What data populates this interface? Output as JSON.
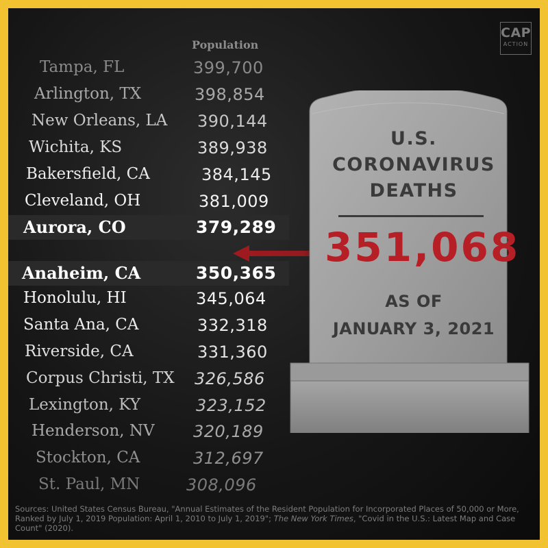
{
  "logo": {
    "line1": "CAP",
    "line2": "ACTION"
  },
  "table": {
    "population_header": "Population",
    "rows": [
      {
        "city": "Tampa, FL",
        "population": "399,700"
      },
      {
        "city": "Arlington, TX",
        "population": "398,854"
      },
      {
        "city": "New Orleans, LA",
        "population": "390,144"
      },
      {
        "city": "Wichita, KS",
        "population": "389,938"
      },
      {
        "city": "Bakersfield, CA",
        "population": "384,145"
      },
      {
        "city": "Cleveland, OH",
        "population": "381,009"
      },
      {
        "city": "Aurora, CO",
        "population": "379,289"
      },
      {
        "city": "Anaheim, CA",
        "population": "350,365"
      },
      {
        "city": "Honolulu, HI",
        "population": "345,064"
      },
      {
        "city": "Santa Ana, CA",
        "population": "332,318"
      },
      {
        "city": "Riverside, CA",
        "population": "331,360"
      },
      {
        "city": "Corpus Christi, TX",
        "population": "326,586"
      },
      {
        "city": "Lexington, KY",
        "population": "323,152"
      },
      {
        "city": "Henderson, NV",
        "population": "320,189"
      },
      {
        "city": "Stockton, CA",
        "population": "312,697"
      },
      {
        "city": "St. Paul, MN",
        "population": "308,096"
      }
    ]
  },
  "tombstone": {
    "title_line1": "U.S.",
    "title_line2": "CORONAVIRUS",
    "title_line3": "DEATHS",
    "deaths": "351,068",
    "as_of_line1": "AS OF",
    "as_of_line2": "JANUARY 3, 2021"
  },
  "footnote": {
    "part1": "Sources: United States Census Bureau, \"Annual Estimates of the Resident Population for Incorporated Places of 50,000 or More, Ranked by July 1, 2019 Population: April 1, 2010 to July 1, 2019\"; ",
    "source2": "The New York Times",
    "part2": ", \"Covid in the U.S.: Latest Map and Case Count\" (2020)."
  },
  "colors": {
    "frame": "#f2c330",
    "accent_red": "#b51f25",
    "stone_text": "#3a3a3a"
  }
}
